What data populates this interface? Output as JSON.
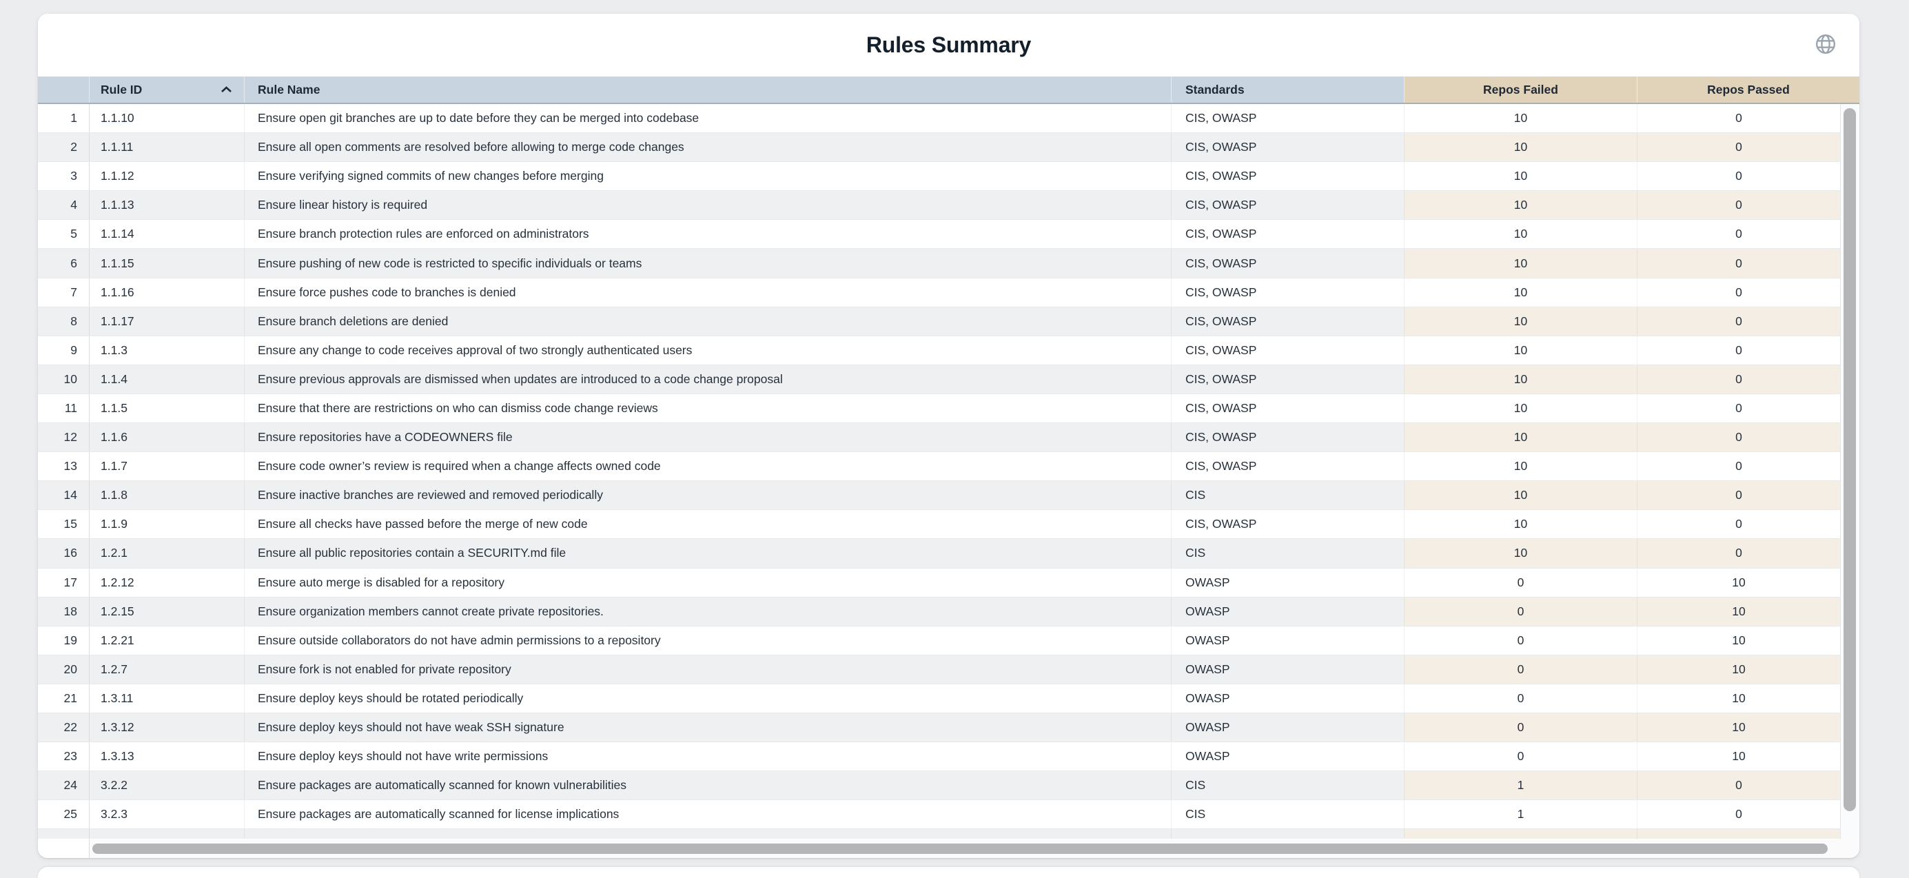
{
  "card": {
    "title": "Rules Summary"
  },
  "icons": {
    "top_right": "globe-icon",
    "rule_id_sort": "chevron-up-icon"
  },
  "colors": {
    "header_blue": "#c8d5e1",
    "header_tan": "#e1d3ba",
    "row_stripe": "#eff0f2",
    "row_stripe_warm": "#f4eee4",
    "title_text": "#141f2c",
    "header_text": "#1e2935",
    "cell_text": "#27313c",
    "icon_gray": "#9aa4ae",
    "scrollbar_thumb": "#b4b5b7"
  },
  "table": {
    "columns": [
      {
        "key": "index",
        "label": ""
      },
      {
        "key": "rule_id",
        "label": "Rule ID",
        "sort": "asc"
      },
      {
        "key": "rule_name",
        "label": "Rule Name"
      },
      {
        "key": "standards",
        "label": "Standards"
      },
      {
        "key": "repos_failed",
        "label": "Repos Failed"
      },
      {
        "key": "repos_passed",
        "label": "Repos Passed"
      }
    ],
    "partial_row_visible": true,
    "rows": [
      {
        "index": 1,
        "rule_id": "1.1.10",
        "rule_name": "Ensure open git branches are up to date before they can be merged into codebase",
        "standards": "CIS, OWASP",
        "repos_failed": 10,
        "repos_passed": 0
      },
      {
        "index": 2,
        "rule_id": "1.1.11",
        "rule_name": "Ensure all open comments are resolved before allowing to merge code changes",
        "standards": "CIS, OWASP",
        "repos_failed": 10,
        "repos_passed": 0
      },
      {
        "index": 3,
        "rule_id": "1.1.12",
        "rule_name": "Ensure verifying signed commits of new changes before merging",
        "standards": "CIS, OWASP",
        "repos_failed": 10,
        "repos_passed": 0
      },
      {
        "index": 4,
        "rule_id": "1.1.13",
        "rule_name": "Ensure linear history is required",
        "standards": "CIS, OWASP",
        "repos_failed": 10,
        "repos_passed": 0
      },
      {
        "index": 5,
        "rule_id": "1.1.14",
        "rule_name": "Ensure branch protection rules are enforced on administrators",
        "standards": "CIS, OWASP",
        "repos_failed": 10,
        "repos_passed": 0
      },
      {
        "index": 6,
        "rule_id": "1.1.15",
        "rule_name": "Ensure pushing of new code is restricted to specific individuals or teams",
        "standards": "CIS, OWASP",
        "repos_failed": 10,
        "repos_passed": 0
      },
      {
        "index": 7,
        "rule_id": "1.1.16",
        "rule_name": "Ensure force pushes code to branches is denied",
        "standards": "CIS, OWASP",
        "repos_failed": 10,
        "repos_passed": 0
      },
      {
        "index": 8,
        "rule_id": "1.1.17",
        "rule_name": "Ensure branch deletions are denied",
        "standards": "CIS, OWASP",
        "repos_failed": 10,
        "repos_passed": 0
      },
      {
        "index": 9,
        "rule_id": "1.1.3",
        "rule_name": "Ensure any change to code receives approval of two strongly authenticated users",
        "standards": "CIS, OWASP",
        "repos_failed": 10,
        "repos_passed": 0
      },
      {
        "index": 10,
        "rule_id": "1.1.4",
        "rule_name": "Ensure previous approvals are dismissed when updates are introduced to a code change proposal",
        "standards": "CIS, OWASP",
        "repos_failed": 10,
        "repos_passed": 0
      },
      {
        "index": 11,
        "rule_id": "1.1.5",
        "rule_name": "Ensure that there are restrictions on who can dismiss code change reviews",
        "standards": "CIS, OWASP",
        "repos_failed": 10,
        "repos_passed": 0
      },
      {
        "index": 12,
        "rule_id": "1.1.6",
        "rule_name": "Ensure repositories have a CODEOWNERS file",
        "standards": "CIS, OWASP",
        "repos_failed": 10,
        "repos_passed": 0
      },
      {
        "index": 13,
        "rule_id": "1.1.7",
        "rule_name": "Ensure code owner’s review is required when a change affects owned code",
        "standards": "CIS, OWASP",
        "repos_failed": 10,
        "repos_passed": 0
      },
      {
        "index": 14,
        "rule_id": "1.1.8",
        "rule_name": "Ensure inactive branches are reviewed and removed periodically",
        "standards": "CIS",
        "repos_failed": 10,
        "repos_passed": 0
      },
      {
        "index": 15,
        "rule_id": "1.1.9",
        "rule_name": "Ensure all checks have passed before the merge of new code",
        "standards": "CIS, OWASP",
        "repos_failed": 10,
        "repos_passed": 0
      },
      {
        "index": 16,
        "rule_id": "1.2.1",
        "rule_name": "Ensure all public repositories contain a SECURITY.md file",
        "standards": "CIS",
        "repos_failed": 10,
        "repos_passed": 0
      },
      {
        "index": 17,
        "rule_id": "1.2.12",
        "rule_name": "Ensure auto merge is disabled for a repository",
        "standards": "OWASP",
        "repos_failed": 0,
        "repos_passed": 10
      },
      {
        "index": 18,
        "rule_id": "1.2.15",
        "rule_name": "Ensure organization members cannot create private repositories.",
        "standards": "OWASP",
        "repos_failed": 0,
        "repos_passed": 10
      },
      {
        "index": 19,
        "rule_id": "1.2.21",
        "rule_name": "Ensure outside collaborators do not have admin permissions to a repository",
        "standards": "OWASP",
        "repos_failed": 0,
        "repos_passed": 10
      },
      {
        "index": 20,
        "rule_id": "1.2.7",
        "rule_name": "Ensure fork is not enabled for private repository",
        "standards": "OWASP",
        "repos_failed": 0,
        "repos_passed": 10
      },
      {
        "index": 21,
        "rule_id": "1.3.11",
        "rule_name": "Ensure deploy keys should be rotated periodically",
        "standards": "OWASP",
        "repos_failed": 0,
        "repos_passed": 10
      },
      {
        "index": 22,
        "rule_id": "1.3.12",
        "rule_name": "Ensure deploy keys should not have weak SSH signature",
        "standards": "OWASP",
        "repos_failed": 0,
        "repos_passed": 10
      },
      {
        "index": 23,
        "rule_id": "1.3.13",
        "rule_name": "Ensure deploy keys should not have write permissions",
        "standards": "OWASP",
        "repos_failed": 0,
        "repos_passed": 10
      },
      {
        "index": 24,
        "rule_id": "3.2.2",
        "rule_name": "Ensure packages are automatically scanned for known vulnerabilities",
        "standards": "CIS",
        "repos_failed": 1,
        "repos_passed": 0
      },
      {
        "index": 25,
        "rule_id": "3.2.3",
        "rule_name": "Ensure packages are automatically scanned for license implications",
        "standards": "CIS",
        "repos_failed": 1,
        "repos_passed": 0
      }
    ]
  }
}
